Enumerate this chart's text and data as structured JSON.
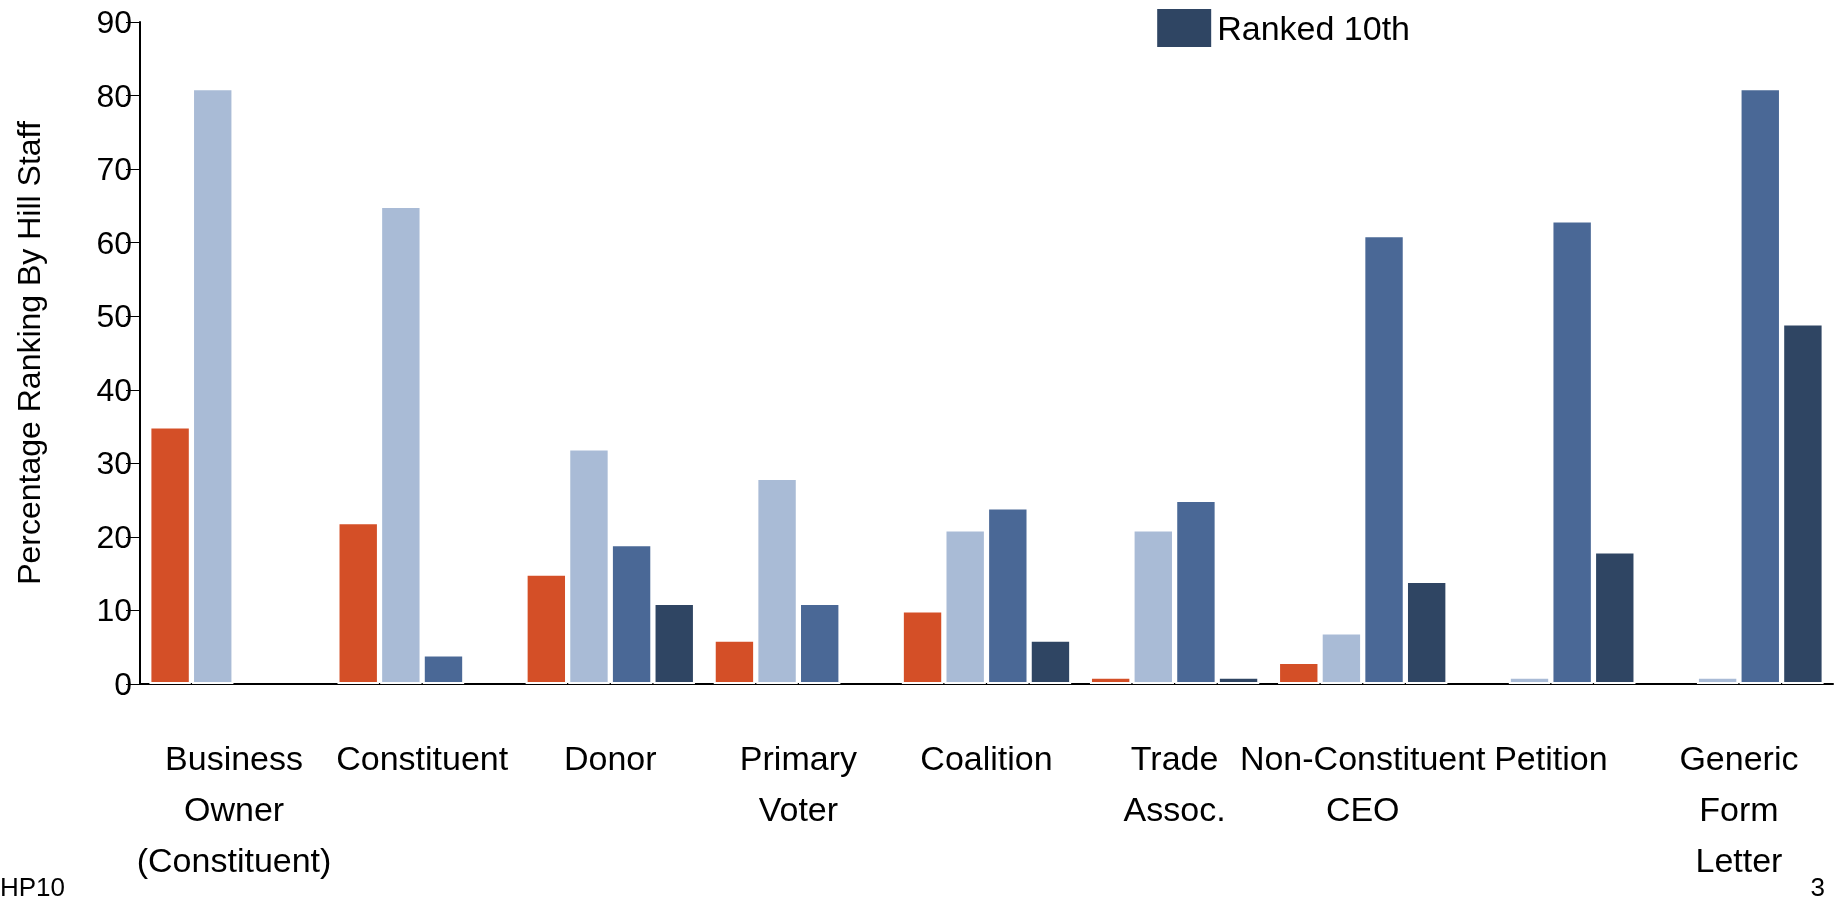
{
  "chart_data": {
    "type": "bar",
    "ylabel": "Percentage Ranking By Hill Staff",
    "categories": [
      "Business Owner (Constituent)",
      "Constituent",
      "Donor",
      "Primary Voter",
      "Coalition",
      "Trade Assoc.",
      "Non-Constituent CEO",
      "Petition",
      "Generic Form Letter"
    ],
    "series": [
      {
        "color": "#d44f27",
        "values": [
          35,
          22,
          15,
          6,
          10,
          1,
          3,
          null,
          null
        ]
      },
      {
        "color": "#a9bbd6",
        "values": [
          81,
          65,
          32,
          28,
          21,
          21,
          7,
          1,
          1
        ]
      },
      {
        "color": "#4a6896",
        "values": [
          null,
          4,
          19,
          11,
          24,
          25,
          61,
          63,
          81
        ]
      },
      {
        "name": "Ranked 10th",
        "color": "#2f4563",
        "values": [
          null,
          null,
          11,
          null,
          6,
          1,
          14,
          18,
          49
        ]
      }
    ],
    "ylim": [
      0,
      90
    ],
    "yticks": [
      0,
      10,
      20,
      30,
      40,
      50,
      60,
      70,
      80,
      90
    ],
    "grid": false,
    "legend": "top right",
    "annotations": [
      "HP10",
      "3"
    ]
  }
}
